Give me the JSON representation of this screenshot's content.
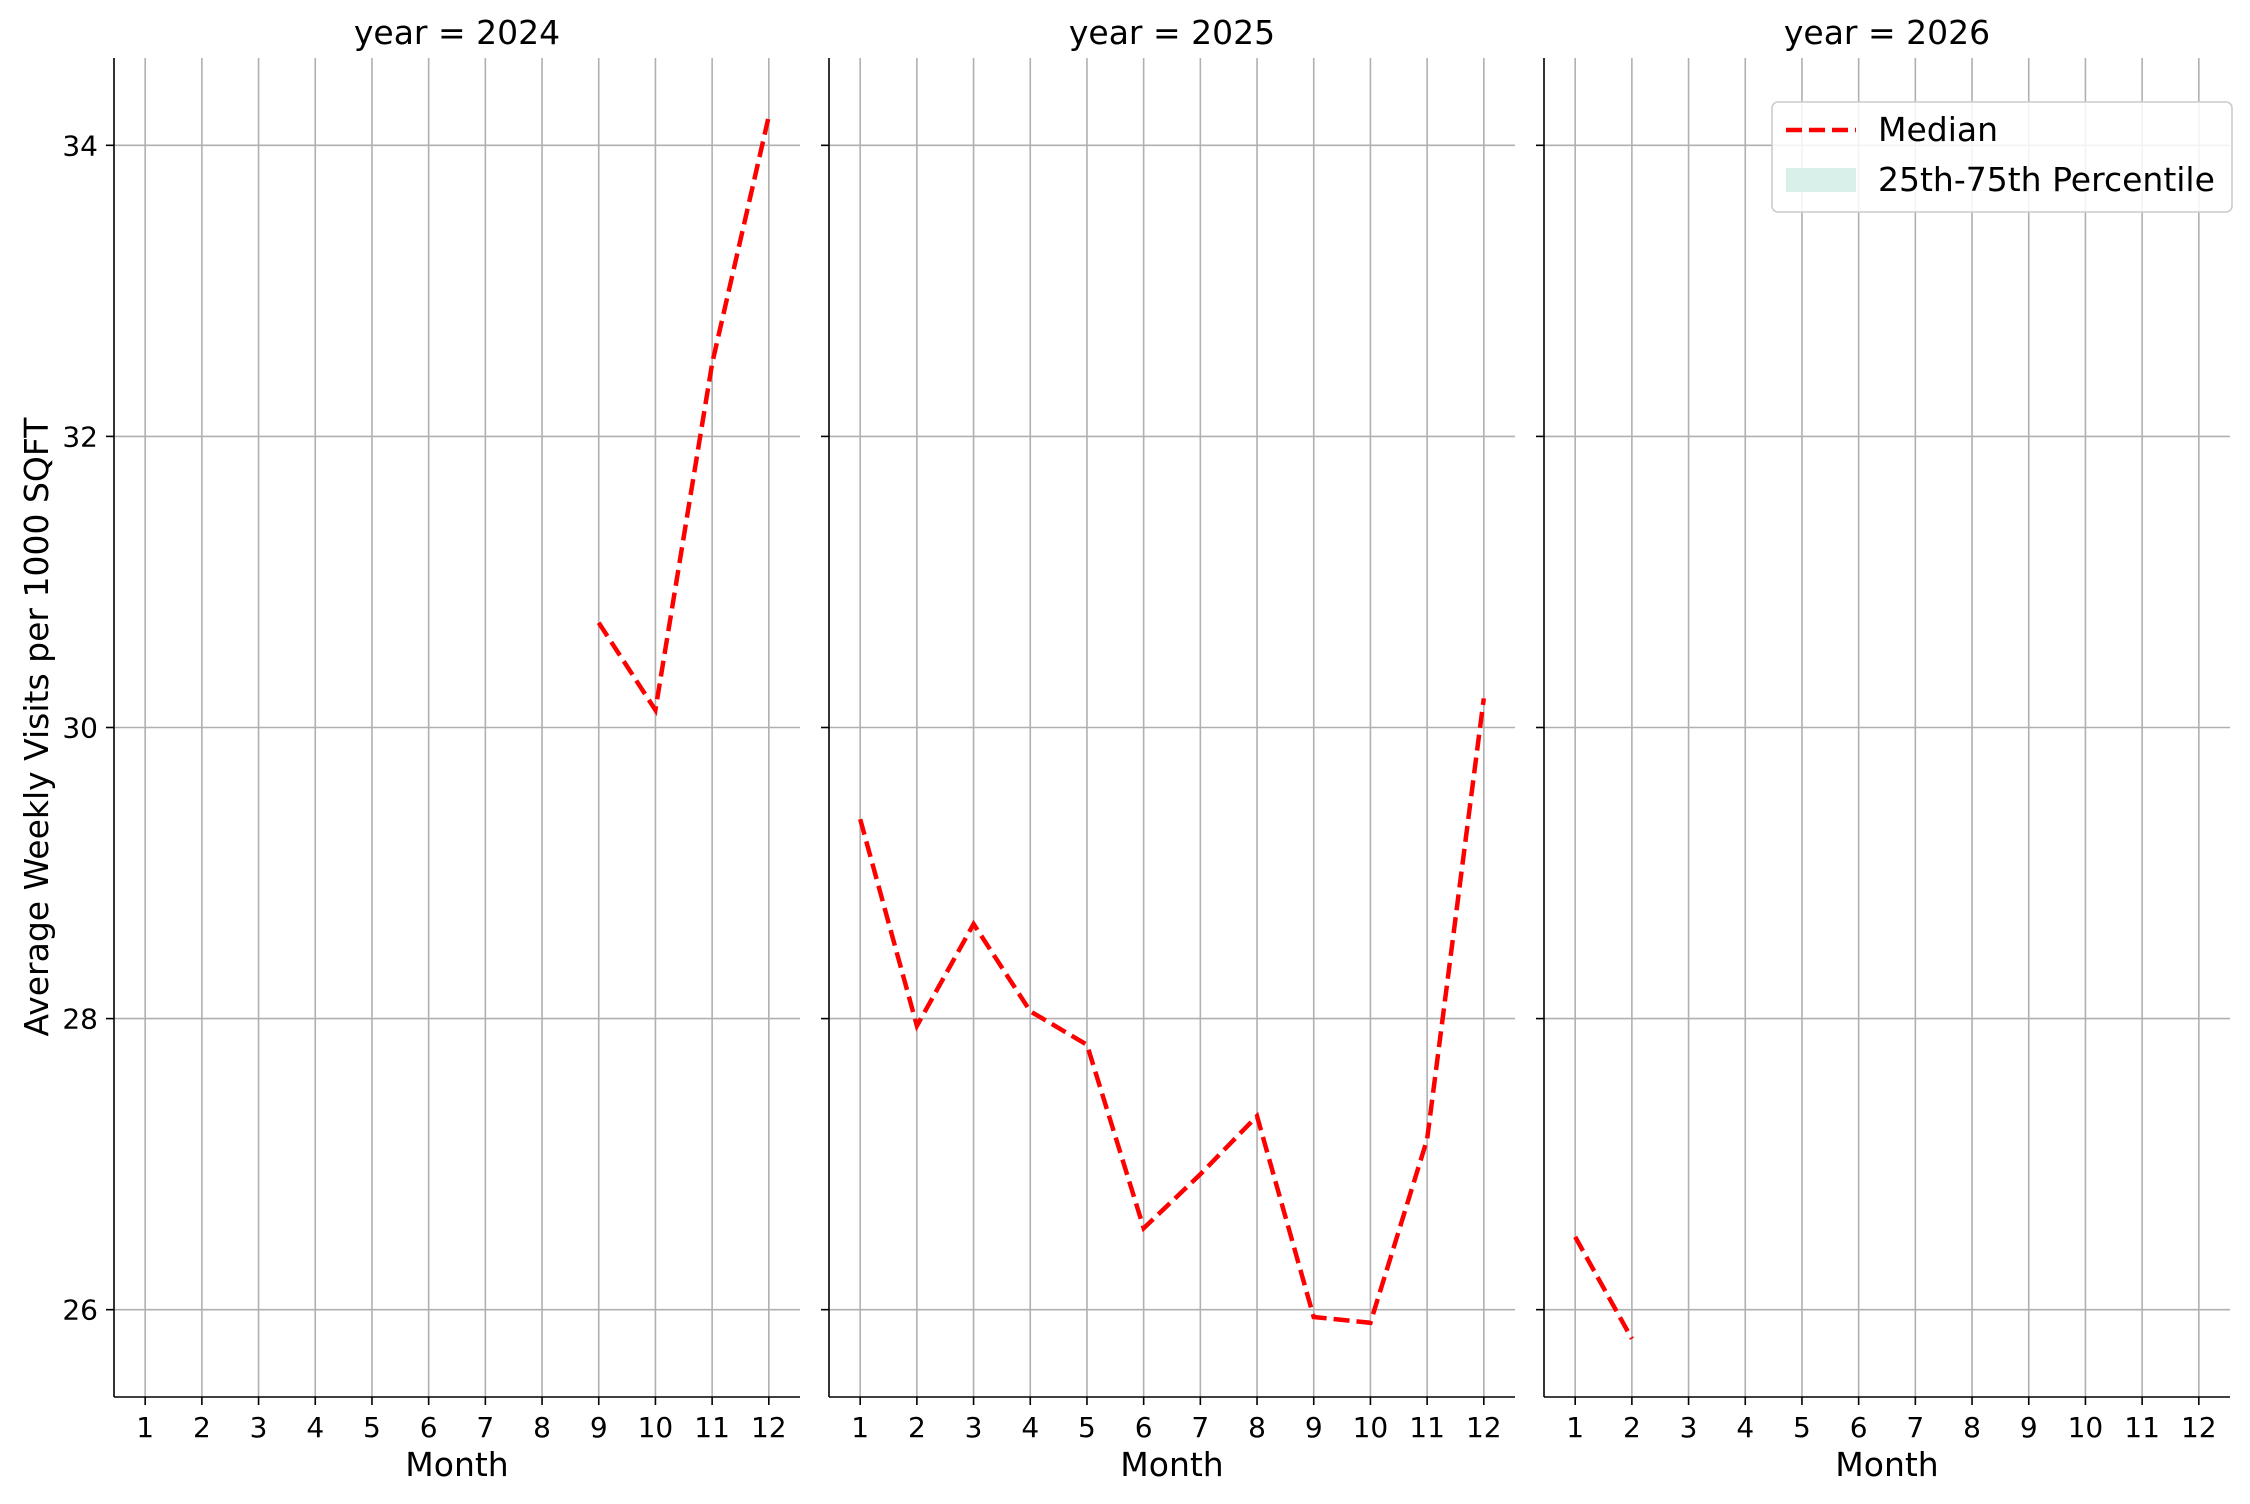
{
  "chart_data": {
    "type": "line",
    "ylabel": "Average Weekly Visits per 1000 SQFT",
    "xlabel": "Month",
    "x_ticks": [
      "1",
      "2",
      "3",
      "4",
      "5",
      "6",
      "7",
      "8",
      "9",
      "10",
      "11",
      "12"
    ],
    "y_ticks": [
      "26",
      "28",
      "30",
      "32",
      "34"
    ],
    "ylim": [
      25.4,
      34.6
    ],
    "xlim": [
      0.45,
      12.55
    ],
    "grid": true,
    "legend": {
      "placement": "top-right",
      "entries": [
        {
          "label": "Median",
          "style": "dashed-line",
          "color": "#ff0000"
        },
        {
          "label": "25th-75th Percentile",
          "style": "filled-patch",
          "color": "#d9efe9"
        }
      ]
    },
    "colors": {
      "median": "#ff0000",
      "band": "#d9efe9",
      "grid": "#b0b0b0"
    },
    "panels": [
      {
        "title": "year = 2024",
        "series": [
          {
            "name": "Median",
            "x": [
              9,
              10,
              11,
              12
            ],
            "y": [
              30.72,
              30.12,
              32.5,
              34.2
            ]
          }
        ]
      },
      {
        "title": "year = 2025",
        "series": [
          {
            "name": "Median",
            "x": [
              1,
              2,
              3,
              4,
              5,
              6,
              7,
              8,
              9,
              10,
              11,
              12
            ],
            "y": [
              29.37,
              27.95,
              28.65,
              28.05,
              27.82,
              26.56,
              26.93,
              27.33,
              25.95,
              25.91,
              27.17,
              30.2
            ]
          }
        ]
      },
      {
        "title": "year = 2026",
        "series": [
          {
            "name": "Median",
            "x": [
              1,
              2
            ],
            "y": [
              26.5,
              25.8
            ]
          }
        ]
      }
    ]
  }
}
